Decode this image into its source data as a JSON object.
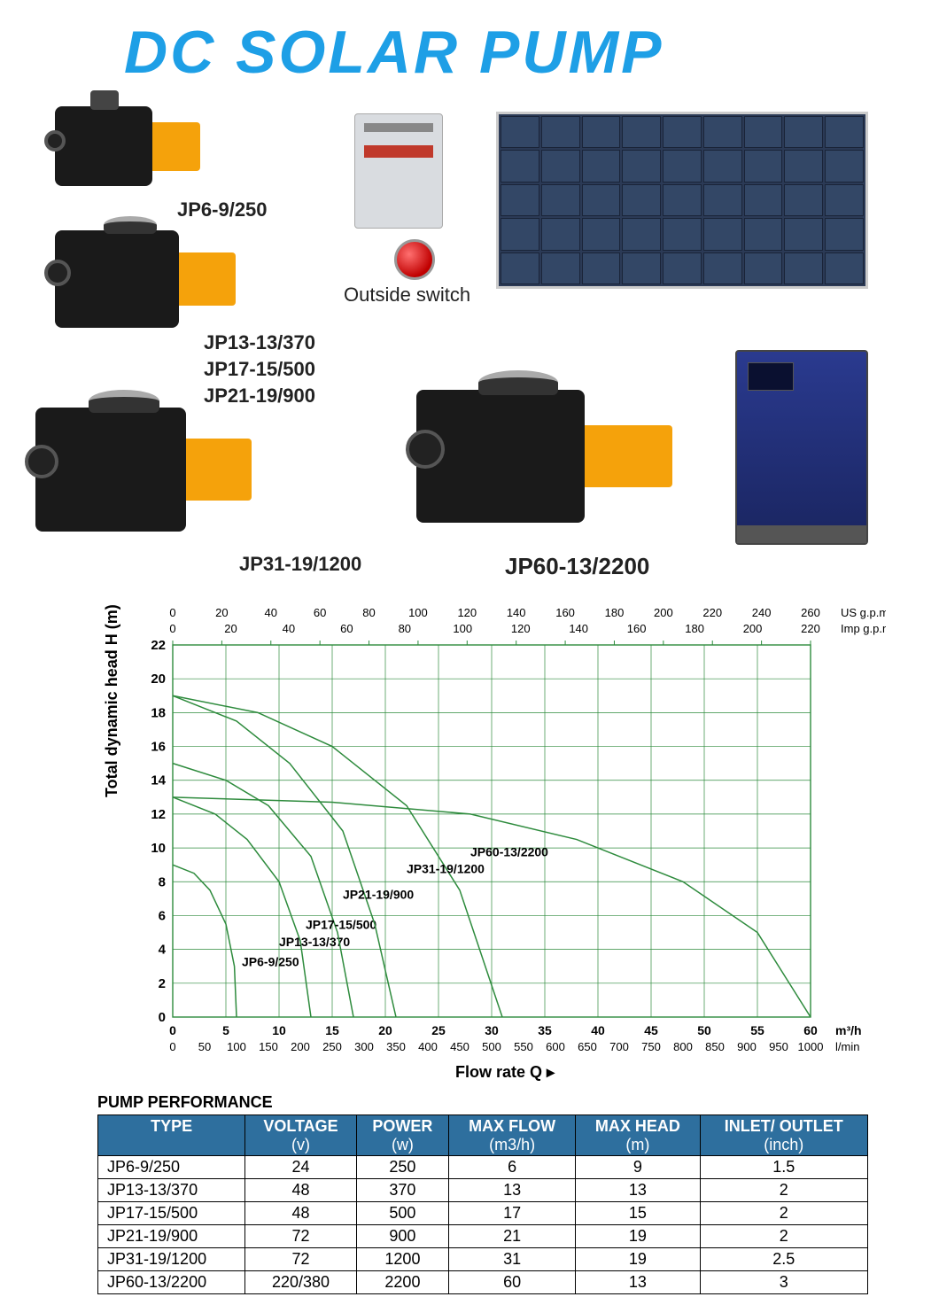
{
  "title": {
    "text": "DC SOLAR PUMP",
    "color": "#1e9fe6"
  },
  "products": {
    "p1": "JP6-9/250",
    "p2a": "JP13-13/370",
    "p2b": "JP17-15/500",
    "p2c": "JP21-19/900",
    "p3": "JP31-19/1200",
    "p4": "JP60-13/2200",
    "switch_label": "Outside switch"
  },
  "colors": {
    "pump_black": "#1a1a1a",
    "pump_orange": "#f5a20b",
    "curve": "#2e8b3d",
    "grid": "#2e8b3d",
    "table_header_bg": "#2e6f9e",
    "table_header_fg": "#ffffff"
  },
  "chart": {
    "type": "line",
    "x_axis_label": "Flow rate  Q  ▸",
    "y_axis_label": "Total dynamic head   H  (m)",
    "x_m3h": {
      "min": 0,
      "max": 60,
      "step": 5,
      "label": "m³/h"
    },
    "x_lmin": {
      "min": 0,
      "max": 1000,
      "step": 50,
      "label": "l/min"
    },
    "x_usgpm": {
      "min": 0,
      "max": 260,
      "step": 20,
      "label": "US g.p.m"
    },
    "x_impgpm": {
      "min": 0,
      "max": 220,
      "step": 20,
      "label": "Imp g.p.m"
    },
    "y": {
      "min": 0,
      "max": 22,
      "step": 2
    },
    "curve_color": "#2e8b3d",
    "grid_color": "#2e8b3d",
    "background_color": "#ffffff",
    "line_width": 1.5,
    "label_fontsize": 14,
    "series": [
      {
        "name": "JP6-9/250",
        "points": [
          [
            0,
            9
          ],
          [
            2,
            8.5
          ],
          [
            3.5,
            7.5
          ],
          [
            5,
            5.5
          ],
          [
            5.8,
            3
          ],
          [
            6,
            0
          ]
        ],
        "label_xy": [
          6.5,
          3
        ]
      },
      {
        "name": "JP13-13/370",
        "points": [
          [
            0,
            13
          ],
          [
            4,
            12
          ],
          [
            7,
            10.5
          ],
          [
            10,
            8
          ],
          [
            12,
            4.5
          ],
          [
            13,
            0
          ]
        ],
        "label_xy": [
          10,
          4.2
        ]
      },
      {
        "name": "JP17-15/500",
        "points": [
          [
            0,
            15
          ],
          [
            5,
            14
          ],
          [
            9,
            12.5
          ],
          [
            13,
            9.5
          ],
          [
            15.5,
            5
          ],
          [
            17,
            0
          ]
        ],
        "label_xy": [
          12.5,
          5.2
        ]
      },
      {
        "name": "JP21-19/900",
        "points": [
          [
            0,
            19
          ],
          [
            6,
            17.5
          ],
          [
            11,
            15
          ],
          [
            16,
            11
          ],
          [
            19,
            5.5
          ],
          [
            21,
            0
          ]
        ],
        "label_xy": [
          16,
          7
        ]
      },
      {
        "name": "JP31-19/1200",
        "points": [
          [
            0,
            19
          ],
          [
            8,
            18
          ],
          [
            15,
            16
          ],
          [
            22,
            12.5
          ],
          [
            27,
            7.5
          ],
          [
            31,
            0
          ]
        ],
        "label_xy": [
          22,
          8.5
        ]
      },
      {
        "name": "JP60-13/2200",
        "points": [
          [
            0,
            13
          ],
          [
            15,
            12.7
          ],
          [
            28,
            12
          ],
          [
            38,
            10.5
          ],
          [
            48,
            8
          ],
          [
            55,
            5
          ],
          [
            60,
            0
          ]
        ],
        "label_xy": [
          28,
          9.5
        ]
      }
    ]
  },
  "table": {
    "title": "PUMP PERFORMANCE",
    "columns": [
      {
        "h1": "TYPE",
        "h2": ""
      },
      {
        "h1": "VOLTAGE",
        "h2": "(v)"
      },
      {
        "h1": "POWER",
        "h2": "(w)"
      },
      {
        "h1": "MAX FLOW",
        "h2": "(m3/h)"
      },
      {
        "h1": "MAX HEAD",
        "h2": "(m)"
      },
      {
        "h1": "INLET/  OUTLET",
        "h2": "(inch)"
      }
    ],
    "rows": [
      [
        "JP6-9/250",
        "24",
        "250",
        "6",
        "9",
        "1.5"
      ],
      [
        "JP13-13/370",
        "48",
        "370",
        "13",
        "13",
        "2"
      ],
      [
        "JP17-15/500",
        "48",
        "500",
        "17",
        "15",
        "2"
      ],
      [
        "JP21-19/900",
        "72",
        "900",
        "21",
        "19",
        "2"
      ],
      [
        "JP31-19/1200",
        "72",
        "1200",
        "31",
        "19",
        "2.5"
      ],
      [
        "JP60-13/2200",
        "220/380",
        "2200",
        "60",
        "13",
        "3"
      ]
    ]
  }
}
